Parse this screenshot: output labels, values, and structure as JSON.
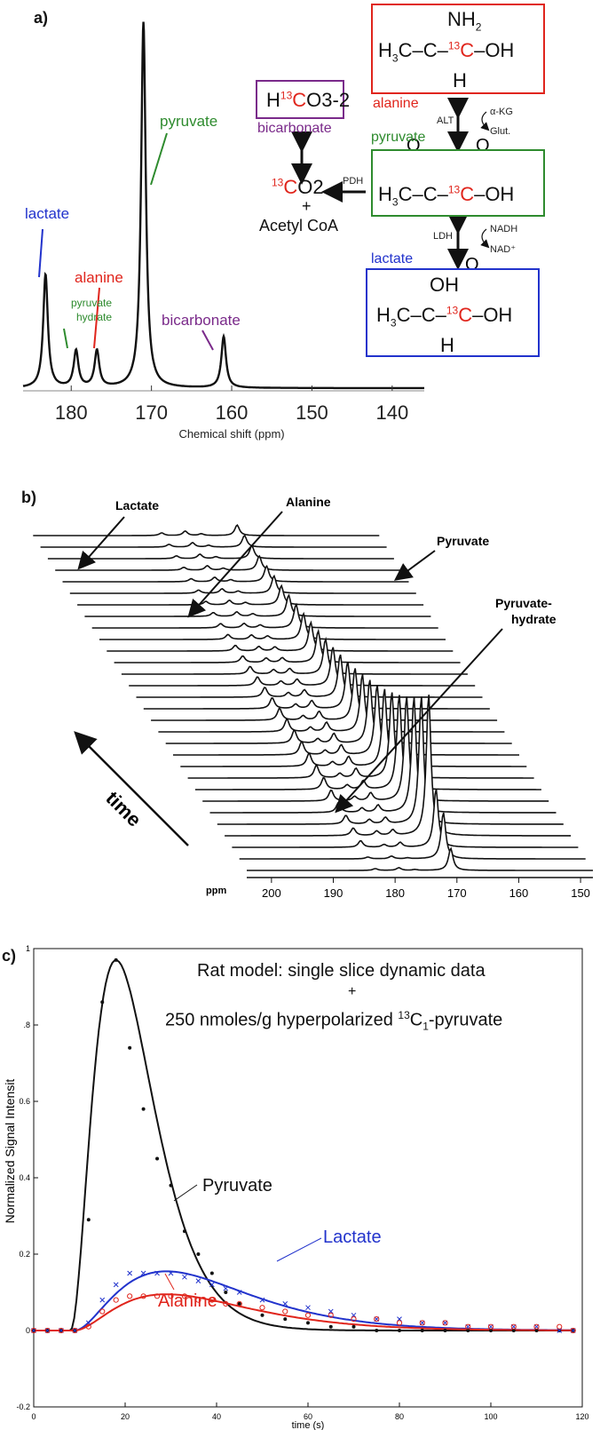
{
  "panels": {
    "a": {
      "label": "a)",
      "xaxis_label": "Chemical shift (ppm)",
      "peaks": [
        {
          "name": "lactate",
          "color": "#2233cc"
        },
        {
          "name": "pyruvate hydrate",
          "color": "#2e8b2e"
        },
        {
          "name": "alanine",
          "color": "#e0251c"
        },
        {
          "name": "pyruvate",
          "color": "#2e8b2e"
        },
        {
          "name": "bicarbonate",
          "color": "#7a2a8a"
        }
      ],
      "pathway": {
        "alanine_box": {
          "nh2": "NH2",
          "line": "H3C–C–13C–OH",
          "h": "H",
          "label": "alanine",
          "color": "#e0251c"
        },
        "pyruvate_box": {
          "label": "pyruvate",
          "color": "#2e8b2e",
          "line": "H3C–C–13C–OH"
        },
        "lactate_box": {
          "label": "lactate",
          "color": "#2233cc",
          "oh": "OH",
          "line": "H3C–C–13C–OH",
          "h": "H"
        },
        "bicarbonate_box": {
          "formula": "H13CO3-2",
          "label": "bicarbonate",
          "color": "#7a2a8a"
        },
        "co2": "13CO2",
        "plus": "+",
        "acetyl": "Acetyl CoA",
        "enzymes": {
          "alt": "ALT",
          "ldh": "LDH",
          "pdh": "PDH"
        },
        "cofactors": {
          "akg": "α-KG",
          "glut": "Glut.",
          "nadh": "NADH",
          "nad": "NAD⁺"
        }
      }
    },
    "b": {
      "label": "b)",
      "annotations": [
        "Lactate",
        "Alanine",
        "Pyruvate",
        "Pyruvate-hydrate",
        "time"
      ],
      "ppm_label": "ppm",
      "num_traces": 30
    },
    "c": {
      "label": "c)",
      "annotation_line1": "Rat model: single slice dynamic data",
      "annotation_plus": "+",
      "annotation_line2": "250 nmoles/g hyperpolarized 13C1-pyruvate",
      "curve_labels": {
        "pyruvate": "Pyruvate",
        "lactate": "Lactate",
        "alanine": "Alanine"
      }
    }
  },
  "chart_data": [
    {
      "type": "line",
      "title": "",
      "xlabel": "Chemical shift (ppm)",
      "ylabel": "",
      "xlim": [
        136,
        186
      ],
      "x_reversed": true,
      "xticks": [
        180,
        170,
        160,
        150,
        140
      ],
      "series": [
        {
          "name": "lactate",
          "peak_ppm": 183.2,
          "height": 0.31
        },
        {
          "name": "pyruvate hydrate",
          "peak_ppm": 179.4,
          "height": 0.1
        },
        {
          "name": "alanine",
          "peak_ppm": 176.8,
          "height": 0.1
        },
        {
          "name": "pyruvate",
          "peak_ppm": 171.0,
          "height": 1.0
        },
        {
          "name": "bicarbonate",
          "peak_ppm": 161.0,
          "height": 0.14
        }
      ]
    },
    {
      "type": "line",
      "title": "",
      "xlabel": "ppm",
      "xlim": [
        148,
        204
      ],
      "x_reversed": true,
      "xticks": [
        200,
        190,
        180,
        170,
        160,
        150
      ],
      "series": [
        {
          "name": "Lactate",
          "peak_ppm": 183.2
        },
        {
          "name": "Alanine",
          "peak_ppm": 176.8
        },
        {
          "name": "Pyruvate",
          "peak_ppm": 171.0
        },
        {
          "name": "Pyruvate-hydrate",
          "peak_ppm": 179.4
        }
      ]
    },
    {
      "type": "line",
      "title": "",
      "xlabel": "time (s)",
      "ylabel": "Normalized Signal Intensit",
      "xlim": [
        0,
        120
      ],
      "ylim": [
        -0.2,
        1
      ],
      "xticks": [
        0,
        20,
        40,
        60,
        80,
        100,
        120
      ],
      "yticks": [
        -0.2,
        0,
        0.2,
        0.4,
        0.6,
        0.8,
        1
      ],
      "ytick_labels": [
        "-0.2",
        "0",
        "0.2",
        "0.4",
        "0.6",
        ".8",
        "1"
      ],
      "series": [
        {
          "name": "Pyruvate",
          "color": "#111111",
          "points_x": [
            0,
            3,
            6,
            9,
            12,
            15,
            18,
            21,
            24,
            27,
            30,
            33,
            36,
            39,
            42,
            45,
            50,
            55,
            60,
            65,
            70,
            75,
            80,
            85,
            90,
            95,
            100,
            105,
            110,
            115,
            118
          ],
          "points_y": [
            0,
            0,
            0,
            0,
            0.29,
            0.86,
            0.97,
            0.74,
            0.58,
            0.45,
            0.38,
            0.26,
            0.2,
            0.15,
            0.1,
            0.07,
            0.04,
            0.03,
            0.02,
            0.01,
            0.01,
            0,
            0,
            0,
            0,
            0,
            0,
            0,
            0,
            0,
            0
          ]
        },
        {
          "name": "Lactate",
          "color": "#2233cc",
          "points_x": [
            0,
            3,
            6,
            9,
            12,
            15,
            18,
            21,
            24,
            27,
            30,
            33,
            36,
            39,
            42,
            45,
            50,
            55,
            60,
            65,
            70,
            75,
            80,
            85,
            90,
            95,
            100,
            105,
            110,
            115,
            118
          ],
          "points_y": [
            0,
            0,
            0,
            0,
            0.02,
            0.08,
            0.12,
            0.15,
            0.15,
            0.15,
            0.15,
            0.14,
            0.13,
            0.12,
            0.11,
            0.1,
            0.08,
            0.07,
            0.06,
            0.05,
            0.04,
            0.03,
            0.03,
            0.02,
            0.02,
            0.01,
            0.01,
            0.01,
            0.01,
            0,
            0
          ]
        },
        {
          "name": "Alanine",
          "color": "#e0251c",
          "points_x": [
            0,
            3,
            6,
            9,
            12,
            15,
            18,
            21,
            24,
            27,
            30,
            33,
            36,
            39,
            42,
            45,
            50,
            55,
            60,
            65,
            70,
            75,
            80,
            85,
            90,
            95,
            100,
            105,
            110,
            115,
            118
          ],
          "points_y": [
            0,
            0,
            0,
            0,
            0.01,
            0.05,
            0.08,
            0.09,
            0.09,
            0.09,
            0.09,
            0.09,
            0.08,
            0.08,
            0.07,
            0.07,
            0.06,
            0.05,
            0.04,
            0.04,
            0.03,
            0.03,
            0.02,
            0.02,
            0.02,
            0.01,
            0.01,
            0.01,
            0.01,
            0.01,
            0
          ]
        }
      ]
    }
  ]
}
